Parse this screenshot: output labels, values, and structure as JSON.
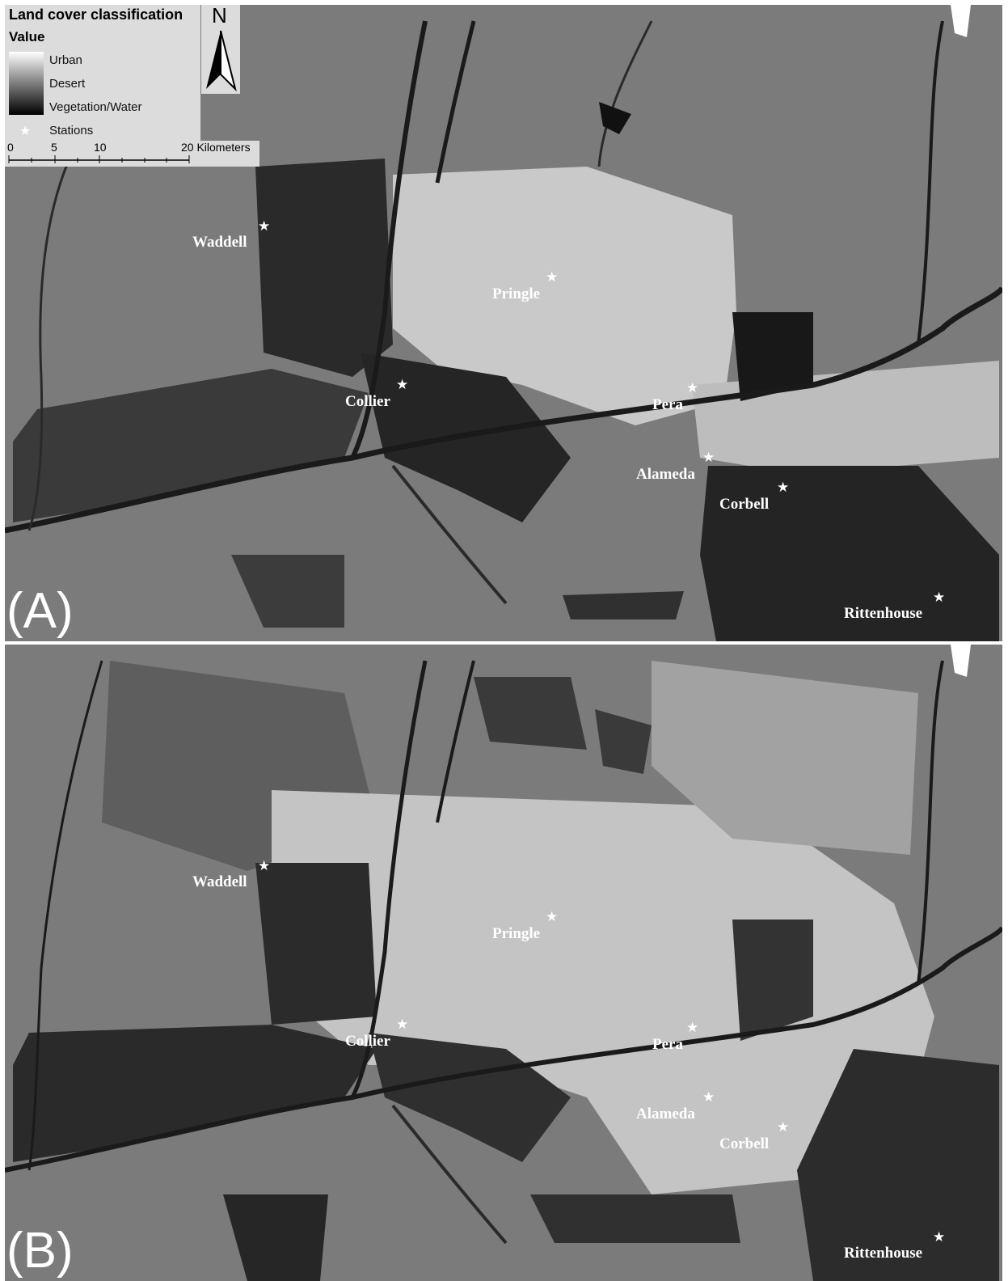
{
  "legend": {
    "title": "Land cover classification",
    "value_label": "Value",
    "classes": [
      "Urban",
      "Desert",
      "Vegetation/Water"
    ],
    "stations_label": "Stations",
    "north_label": "N",
    "scale_ticks": [
      "0",
      "5",
      "10",
      "20 Kilometers"
    ]
  },
  "panels": [
    {
      "letter": "(A)"
    },
    {
      "letter": "(B)"
    }
  ],
  "stations": [
    {
      "name": "Waddell"
    },
    {
      "name": "Pringle"
    },
    {
      "name": "Collier"
    },
    {
      "name": "Pera"
    },
    {
      "name": "Alameda"
    },
    {
      "name": "Corbell"
    },
    {
      "name": "Rittenhouse"
    }
  ],
  "colors": {
    "desert": "#7b7b7b",
    "urban": "#d8d8d8",
    "vegetation_water": "#1e1e1e",
    "legend_bg": "#dcdcdc"
  }
}
